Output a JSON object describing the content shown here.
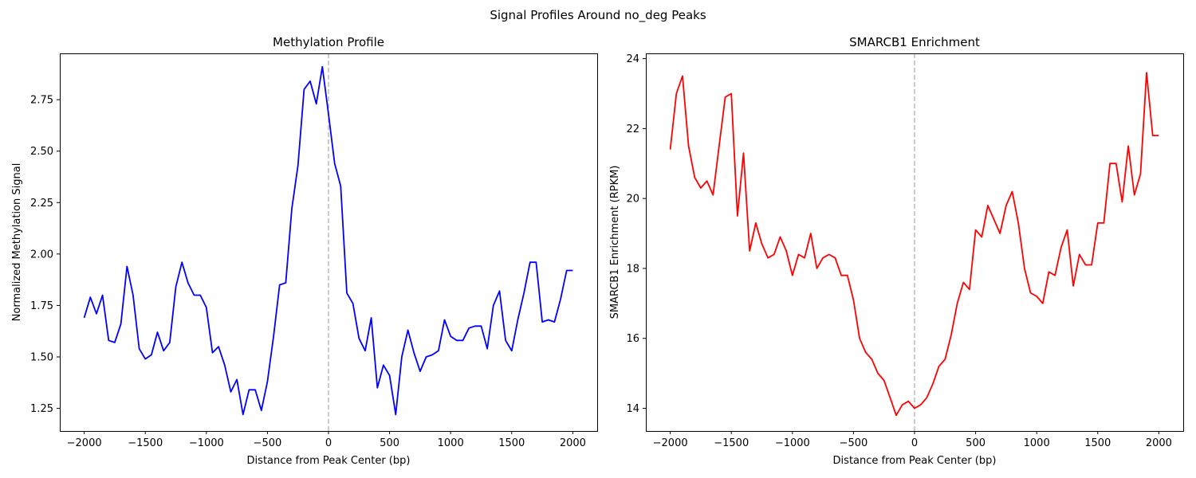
{
  "suptitle": "Signal Profiles Around no_deg Peaks",
  "chart_data": [
    {
      "type": "line",
      "title": "Methylation Profile",
      "xlabel": "Distance from Peak Center (bp)",
      "ylabel": "Normalized Methylation Signal",
      "xlim": [
        -2200,
        2200
      ],
      "ylim": [
        1.14,
        2.975
      ],
      "xticks": [
        -2000,
        -1500,
        -1000,
        -500,
        0,
        500,
        1000,
        1500,
        2000
      ],
      "yticks": [
        1.25,
        1.5,
        1.75,
        2.0,
        2.25,
        2.5,
        2.75
      ],
      "ytick_labels": [
        "1.25",
        "1.50",
        "1.75",
        "2.00",
        "2.25",
        "2.50",
        "2.75"
      ],
      "grid": false,
      "vline": {
        "x": 0,
        "color": "#bbbbbb",
        "style": "dashed"
      },
      "series": [
        {
          "color": "#0000ff",
          "x": [
            -2000,
            -1950,
            -1900,
            -1850,
            -1800,
            -1750,
            -1700,
            -1650,
            -1600,
            -1550,
            -1500,
            -1450,
            -1400,
            -1350,
            -1300,
            -1250,
            -1200,
            -1150,
            -1100,
            -1050,
            -1000,
            -950,
            -900,
            -850,
            -800,
            -750,
            -700,
            -650,
            -600,
            -550,
            -500,
            -450,
            -400,
            -350,
            -300,
            -250,
            -200,
            -150,
            -100,
            -50,
            0,
            50,
            100,
            150,
            200,
            250,
            300,
            350,
            400,
            450,
            500,
            550,
            600,
            650,
            700,
            750,
            800,
            850,
            900,
            950,
            1000,
            1050,
            1100,
            1150,
            1200,
            1250,
            1300,
            1350,
            1400,
            1450,
            1500,
            1550,
            1600,
            1650,
            1700,
            1750,
            1800,
            1850,
            1900,
            1950,
            2000
          ],
          "y": [
            1.69,
            1.79,
            1.71,
            1.8,
            1.58,
            1.57,
            1.66,
            1.94,
            1.8,
            1.54,
            1.49,
            1.51,
            1.62,
            1.53,
            1.57,
            1.84,
            1.96,
            1.86,
            1.8,
            1.8,
            1.74,
            1.52,
            1.55,
            1.46,
            1.33,
            1.39,
            1.22,
            1.34,
            1.34,
            1.24,
            1.38,
            1.6,
            1.85,
            1.86,
            2.22,
            2.43,
            2.8,
            2.84,
            2.73,
            2.91,
            2.68,
            2.44,
            2.33,
            1.81,
            1.76,
            1.59,
            1.53,
            1.69,
            1.35,
            1.46,
            1.41,
            1.22,
            1.5,
            1.63,
            1.52,
            1.43,
            1.5,
            1.51,
            1.53,
            1.68,
            1.6,
            1.58,
            1.58,
            1.64,
            1.65,
            1.65,
            1.54,
            1.75,
            1.82,
            1.58,
            1.53,
            1.68,
            1.81,
            1.96,
            1.96,
            1.67,
            1.68,
            1.67,
            1.78,
            1.92,
            1.92
          ]
        }
      ]
    },
    {
      "type": "line",
      "title": "SMARCB1 Enrichment",
      "xlabel": "Distance from Peak Center (bp)",
      "ylabel": "SMARCB1 Enrichment (RPKM)",
      "xlim": [
        -2200,
        2200
      ],
      "ylim": [
        13.35,
        24.15
      ],
      "xticks": [
        -2000,
        -1500,
        -1000,
        -500,
        0,
        500,
        1000,
        1500,
        2000
      ],
      "yticks": [
        14,
        16,
        18,
        20,
        22,
        24
      ],
      "ytick_labels": [
        "14",
        "16",
        "18",
        "20",
        "22",
        "24"
      ],
      "grid": false,
      "vline": {
        "x": 0,
        "color": "#bbbbbb",
        "style": "dashed"
      },
      "series": [
        {
          "color": "#ff0000",
          "x": [
            -2000,
            -1950,
            -1900,
            -1850,
            -1800,
            -1750,
            -1700,
            -1650,
            -1600,
            -1550,
            -1500,
            -1450,
            -1400,
            -1350,
            -1300,
            -1250,
            -1200,
            -1150,
            -1100,
            -1050,
            -1000,
            -950,
            -900,
            -850,
            -800,
            -750,
            -700,
            -650,
            -600,
            -550,
            -500,
            -450,
            -400,
            -350,
            -300,
            -250,
            -200,
            -150,
            -100,
            -50,
            0,
            50,
            100,
            150,
            200,
            250,
            300,
            350,
            400,
            450,
            500,
            550,
            600,
            650,
            700,
            750,
            800,
            850,
            900,
            950,
            1000,
            1050,
            1100,
            1150,
            1200,
            1250,
            1300,
            1350,
            1400,
            1450,
            1500,
            1550,
            1600,
            1650,
            1700,
            1750,
            1800,
            1850,
            1900,
            1950,
            2000
          ],
          "y": [
            21.4,
            23.0,
            23.5,
            21.5,
            20.6,
            20.3,
            20.5,
            20.1,
            21.5,
            22.9,
            23.0,
            19.5,
            21.3,
            18.5,
            19.3,
            18.7,
            18.3,
            18.4,
            18.9,
            18.5,
            17.8,
            18.4,
            18.3,
            19.0,
            18.0,
            18.3,
            18.4,
            18.3,
            17.8,
            17.8,
            17.1,
            16.0,
            15.6,
            15.4,
            15.0,
            14.8,
            14.3,
            13.8,
            14.1,
            14.2,
            14.0,
            14.1,
            14.3,
            14.7,
            15.2,
            15.4,
            16.1,
            17.0,
            17.6,
            17.4,
            19.1,
            18.9,
            19.8,
            19.4,
            19.0,
            19.8,
            20.2,
            19.3,
            18.0,
            17.3,
            17.2,
            17.0,
            17.9,
            17.8,
            18.6,
            19.1,
            17.5,
            18.4,
            18.1,
            18.1,
            19.3,
            19.3,
            21.0,
            21.0,
            19.9,
            21.5,
            20.1,
            20.7,
            23.6,
            21.8,
            21.8
          ]
        }
      ]
    }
  ]
}
